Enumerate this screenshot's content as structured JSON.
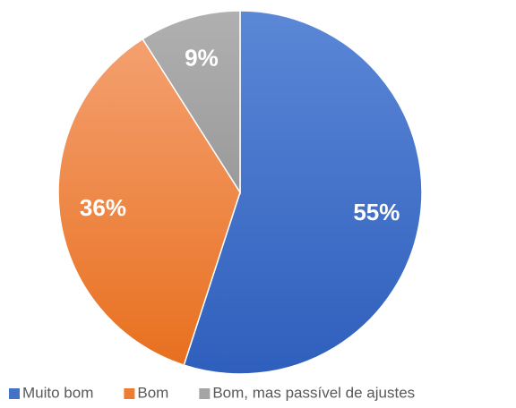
{
  "chart_data": {
    "type": "pie",
    "categories": [
      "Muito bom",
      "Bom",
      "Bom, mas passível de ajustes"
    ],
    "values": [
      55,
      36,
      9
    ],
    "value_labels": [
      "55%",
      "36%",
      "9%"
    ],
    "colors": [
      "#4472c4",
      "#ed7d31",
      "#a5a5a5"
    ],
    "legend": "bottom"
  }
}
